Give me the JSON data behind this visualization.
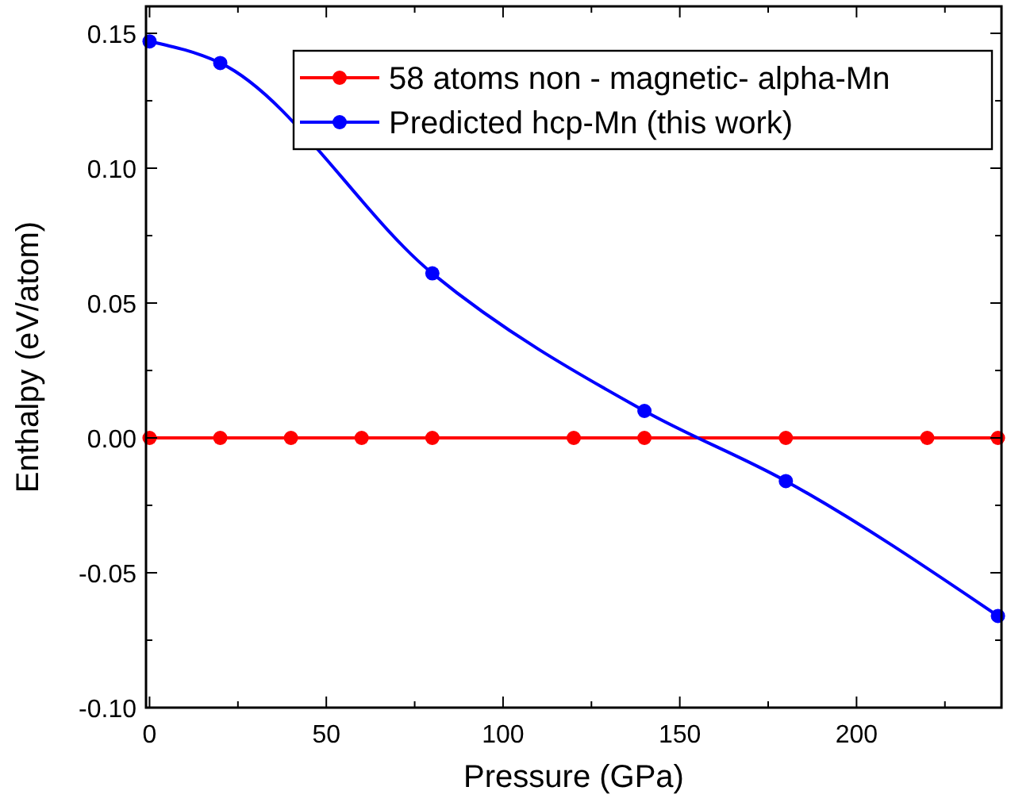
{
  "chart_data": {
    "type": "line",
    "xlabel": "Pressure (GPa)",
    "ylabel": "Enthalpy (eV/atom)",
    "xlim": [
      -1,
      241
    ],
    "ylim": [
      -0.1,
      0.16
    ],
    "xticks": [
      0,
      {
        "value": 25,
        "label": null
      },
      50,
      {
        "value": 75,
        "label": null
      },
      100,
      {
        "value": 125,
        "label": null
      },
      150,
      {
        "value": 175,
        "label": null
      },
      200,
      {
        "value": 225,
        "label": null
      }
    ],
    "yticks": [
      {
        "value": -0.1,
        "label": "-0.10"
      },
      {
        "value": -0.075,
        "label": null
      },
      {
        "value": -0.05,
        "label": "-0.05"
      },
      {
        "value": -0.025,
        "label": null
      },
      {
        "value": 0,
        "label": "0.00"
      },
      {
        "value": 0.025,
        "label": null
      },
      {
        "value": 0.05,
        "label": "0.05"
      },
      {
        "value": 0.075,
        "label": null
      },
      {
        "value": 0.1,
        "label": "0.10"
      },
      {
        "value": 0.125,
        "label": null
      },
      {
        "value": 0.15,
        "label": "0.15"
      }
    ],
    "marker": "circle",
    "legend": "top right",
    "grid": false,
    "series": [
      {
        "name": "58 atoms non - magnetic- alpha-Mn",
        "color": "#ff0000",
        "x": [
          0,
          20,
          40,
          60,
          80,
          120,
          140,
          180,
          220,
          240
        ],
        "values": [
          0,
          0,
          0,
          0,
          0,
          0,
          0,
          0,
          0,
          0
        ]
      },
      {
        "name": "Predicted hcp-Mn (this work)",
        "color": "#0000ff",
        "x": [
          0,
          20,
          80,
          140,
          180,
          240
        ],
        "values": [
          0.147,
          0.139,
          0.061,
          0.01,
          -0.016,
          -0.066
        ]
      }
    ]
  }
}
